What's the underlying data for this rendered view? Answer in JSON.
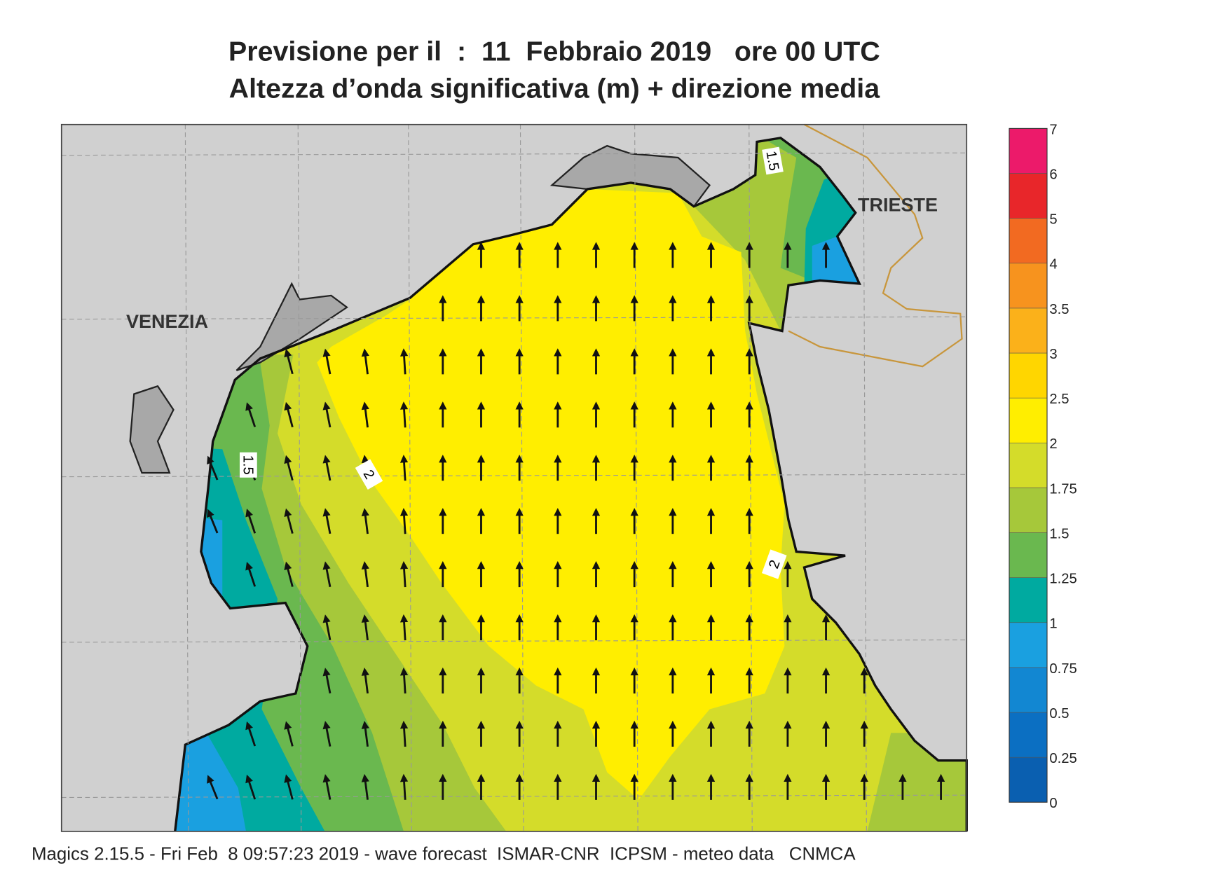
{
  "title": {
    "line1": "Previsione per il  :  11  Febbraio 2019   ore 00 UTC",
    "line2": "Altezza d’onda significativa (m) + direzione media"
  },
  "cities": [
    "VENEZIA",
    "TRIESTE"
  ],
  "contour_labels": [
    "1.5",
    "2",
    "2",
    "1.5"
  ],
  "colorbar": {
    "levels": [
      0,
      0.25,
      0.5,
      0.75,
      1,
      1.25,
      1.5,
      1.75,
      2,
      2.5,
      3,
      3.5,
      4,
      5,
      6,
      7
    ],
    "colors": [
      "#0a5fb0",
      "#0b6fc2",
      "#1287d2",
      "#1aa0e0",
      "#00aaa0",
      "#6ab84f",
      "#a6c83a",
      "#d4dc2a",
      "#ffee00",
      "#ffd600",
      "#fbb11a",
      "#f7931e",
      "#f26a21",
      "#e8262a",
      "#ec1a6a"
    ]
  },
  "footer": "Magics 2.15.5 - Fri Feb  8 09:57:23 2019 - wave forecast  ISMAR-CNR  ICPSM - meteo data   CNMCA"
}
